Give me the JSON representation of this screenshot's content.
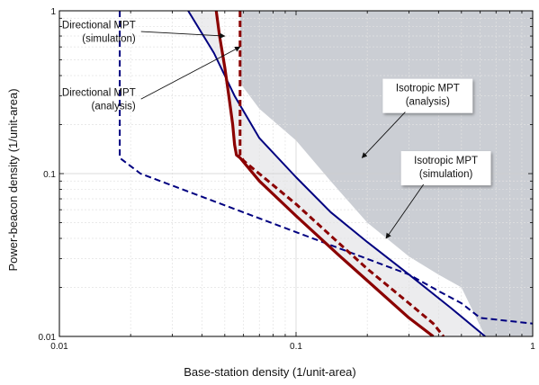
{
  "chart_data": {
    "type": "line",
    "xlabel": "Base-station density (1/unit-area)",
    "ylabel": "Power-beacon density (1/unit-area)",
    "xscale": "log",
    "yscale": "log",
    "xlim": [
      0.01,
      1
    ],
    "ylim": [
      0.01,
      1
    ],
    "grid": true,
    "x_ticks": [
      {
        "value": 0.01,
        "label": "0.01"
      },
      {
        "value": 0.1,
        "label": "0.1"
      },
      {
        "value": 1,
        "label": "1"
      }
    ],
    "y_ticks": [
      {
        "value": 0.01,
        "label": "0.01"
      },
      {
        "value": 0.1,
        "label": "0.1"
      },
      {
        "value": 1,
        "label": "1"
      }
    ],
    "regions": [
      {
        "fill": "#ececee",
        "boundary": [
          [
            0.046,
            1
          ],
          [
            0.0475,
            0.7
          ],
          [
            0.05,
            0.45
          ],
          [
            0.052,
            0.3
          ],
          [
            0.054,
            0.2
          ],
          [
            0.055,
            0.15
          ],
          [
            0.056,
            0.13
          ],
          [
            0.058,
            0.125
          ],
          [
            0.07,
            0.09
          ],
          [
            0.1,
            0.055
          ],
          [
            0.15,
            0.032
          ],
          [
            0.2,
            0.022
          ],
          [
            0.3,
            0.013
          ],
          [
            0.38,
            0.01
          ],
          [
            0.63,
            0.01
          ],
          [
            0.3,
            0.024
          ],
          [
            0.2,
            0.038
          ],
          [
            0.14,
            0.058
          ],
          [
            0.1,
            0.095
          ],
          [
            0.07,
            0.165
          ],
          [
            0.055,
            0.3
          ],
          [
            0.045,
            0.55
          ],
          [
            0.035,
            1
          ]
        ]
      },
      {
        "fill": "#cbced4",
        "boundary": [
          [
            0.058,
            1
          ],
          [
            0.058,
            0.36
          ],
          [
            0.07,
            0.25
          ],
          [
            0.1,
            0.16
          ],
          [
            0.14,
            0.09
          ],
          [
            0.2,
            0.05
          ],
          [
            0.3,
            0.031
          ],
          [
            0.4,
            0.024
          ],
          [
            0.5,
            0.02
          ],
          [
            0.63,
            0.01
          ],
          [
            1,
            0.01
          ],
          [
            1,
            1
          ]
        ]
      }
    ],
    "series": [
      {
        "color": "#000080",
        "style": "solid",
        "width": 2,
        "points": [
          [
            0.035,
            1
          ],
          [
            0.045,
            0.55
          ],
          [
            0.055,
            0.3
          ],
          [
            0.07,
            0.165
          ],
          [
            0.1,
            0.095
          ],
          [
            0.14,
            0.058
          ],
          [
            0.2,
            0.038
          ],
          [
            0.3,
            0.024
          ],
          [
            0.45,
            0.015
          ],
          [
            0.63,
            0.01
          ]
        ]
      },
      {
        "color": "#000080",
        "style": "dashed",
        "width": 2,
        "points": [
          [
            0.018,
            1
          ],
          [
            0.018,
            0.125
          ],
          [
            0.022,
            0.1
          ],
          [
            0.3,
            0.024
          ],
          [
            0.4,
            0.019
          ],
          [
            0.5,
            0.016
          ],
          [
            0.6,
            0.013
          ],
          [
            1,
            0.012
          ]
        ]
      },
      {
        "color": "#8b0000",
        "style": "solid",
        "width": 3.2,
        "points": [
          [
            0.046,
            1
          ],
          [
            0.0475,
            0.7
          ],
          [
            0.05,
            0.45
          ],
          [
            0.052,
            0.3
          ],
          [
            0.054,
            0.2
          ],
          [
            0.055,
            0.15
          ],
          [
            0.056,
            0.13
          ],
          [
            0.058,
            0.125
          ],
          [
            0.07,
            0.09
          ],
          [
            0.1,
            0.055
          ],
          [
            0.15,
            0.032
          ],
          [
            0.2,
            0.022
          ],
          [
            0.3,
            0.013
          ],
          [
            0.38,
            0.01
          ]
        ]
      },
      {
        "color": "#8b0000",
        "style": "dashed",
        "width": 3,
        "points": [
          [
            0.058,
            1
          ],
          [
            0.058,
            0.13
          ],
          [
            0.06,
            0.12
          ],
          [
            0.1,
            0.065
          ],
          [
            0.15,
            0.038
          ],
          [
            0.2,
            0.026
          ],
          [
            0.3,
            0.016
          ],
          [
            0.38,
            0.012
          ],
          [
            0.42,
            0.01
          ]
        ]
      }
    ],
    "annotations": [
      {
        "lines": [
          "Directional MPT",
          "(simulation)"
        ],
        "anchor": "right",
        "box": false,
        "target": [
          0.05,
          0.7
        ],
        "label_at": [
          0.021,
          0.78
        ]
      },
      {
        "lines": [
          "Directional MPT",
          "(analysis)"
        ],
        "anchor": "right",
        "box": false,
        "target": [
          0.058,
          0.6
        ],
        "label_at": [
          0.021,
          0.3
        ]
      },
      {
        "lines": [
          "Isotropic MPT",
          "(analysis)"
        ],
        "anchor": "middle",
        "box": true,
        "target": [
          0.19,
          0.125
        ],
        "label_at": [
          0.36,
          0.32
        ]
      },
      {
        "lines": [
          "Isotropic MPT",
          "(simulation)"
        ],
        "anchor": "middle",
        "box": true,
        "target": [
          0.24,
          0.04
        ],
        "label_at": [
          0.43,
          0.115
        ]
      }
    ]
  }
}
